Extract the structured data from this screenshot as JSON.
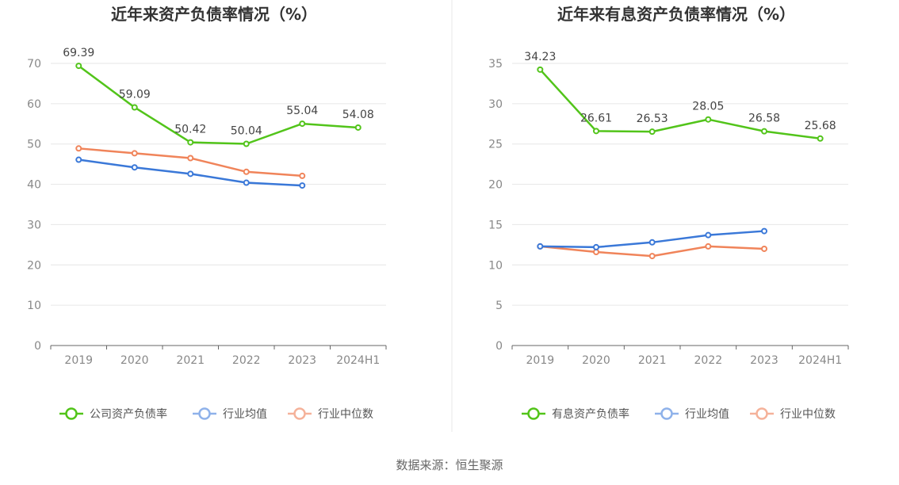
{
  "source": "数据来源：恒生聚源",
  "chart_data": [
    {
      "type": "line",
      "title": "近年来资产负债率情况（%）",
      "categories": [
        "2019",
        "2020",
        "2021",
        "2022",
        "2023",
        "2024H1"
      ],
      "ylim": [
        0,
        70
      ],
      "yticks": [
        0,
        10,
        20,
        30,
        40,
        50,
        60,
        70
      ],
      "series": [
        {
          "name": "公司资产负债率",
          "color": "#52c41a",
          "values": [
            69.39,
            59.09,
            50.42,
            50.04,
            55.04,
            54.08
          ],
          "labels": [
            "69.39",
            "59.09",
            "50.42",
            "50.04",
            "55.04",
            "54.08"
          ],
          "show_labels": true
        },
        {
          "name": "行业均值",
          "color": "#3a78d8",
          "values": [
            46.1,
            44.2,
            42.6,
            40.4,
            39.7,
            null
          ],
          "show_labels": false
        },
        {
          "name": "行业中位数",
          "color": "#f0845a",
          "values": [
            48.9,
            47.7,
            46.5,
            43.1,
            42.1,
            null
          ],
          "show_labels": false
        }
      ]
    },
    {
      "type": "line",
      "title": "近年来有息资产负债率情况（%）",
      "categories": [
        "2019",
        "2020",
        "2021",
        "2022",
        "2023",
        "2024H1"
      ],
      "ylim": [
        0,
        35
      ],
      "yticks": [
        0,
        5,
        10,
        15,
        20,
        25,
        30,
        35
      ],
      "series": [
        {
          "name": "有息资产负债率",
          "color": "#52c41a",
          "values": [
            34.23,
            26.61,
            26.53,
            28.05,
            26.58,
            25.68
          ],
          "labels": [
            "34.23",
            "26.61",
            "26.53",
            "28.05",
            "26.58",
            "25.68"
          ],
          "show_labels": true
        },
        {
          "name": "行业均值",
          "color": "#3a78d8",
          "values": [
            12.3,
            12.2,
            12.8,
            13.7,
            14.2,
            null
          ],
          "show_labels": false
        },
        {
          "name": "行业中位数",
          "color": "#f0845a",
          "values": [
            12.3,
            11.6,
            11.1,
            12.3,
            12.0,
            null
          ],
          "show_labels": false
        }
      ]
    }
  ]
}
